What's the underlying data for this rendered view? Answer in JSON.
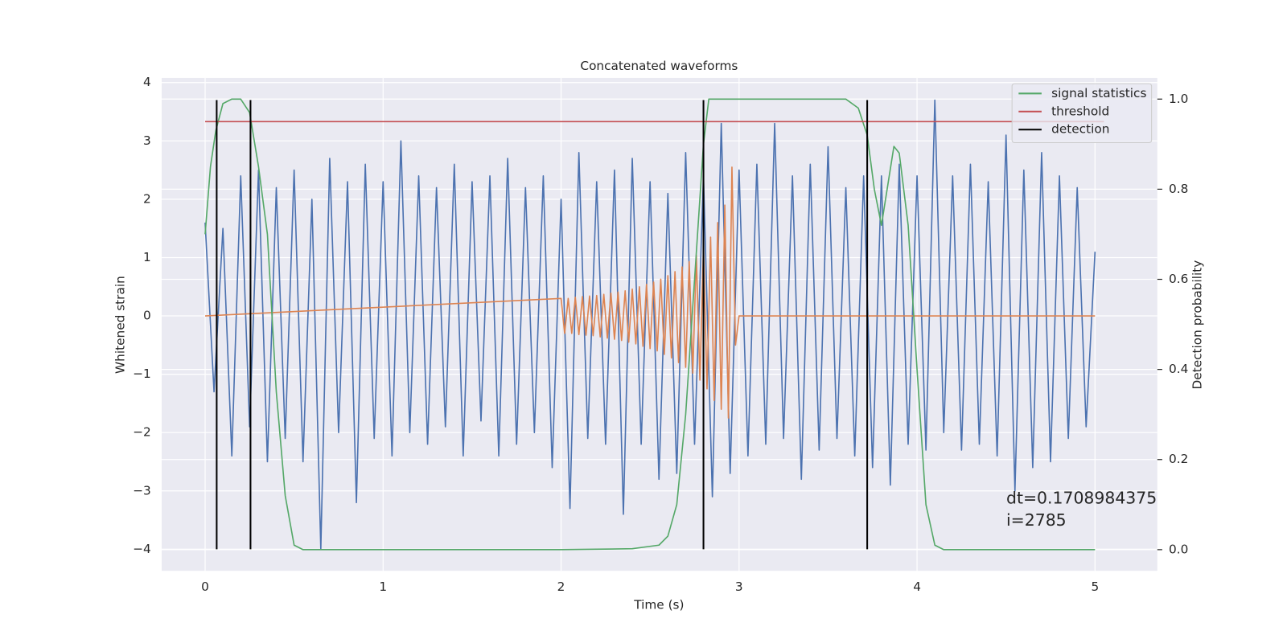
{
  "chart_data": {
    "type": "line",
    "title": "Concatenated waveforms",
    "xlabel": "Time (s)",
    "ylabel": "Whitened strain",
    "y2label": "Detection probability",
    "xlim": [
      -0.244,
      5.35
    ],
    "ylim": [
      -4.37,
      4.08
    ],
    "y2lim": [
      -0.047,
      1.047
    ],
    "xticks": [
      0,
      1,
      2,
      3,
      4,
      5
    ],
    "yticks": [
      {
        "value": -4,
        "label": "−4"
      },
      {
        "value": -3,
        "label": "−3"
      },
      {
        "value": -2,
        "label": "−2"
      },
      {
        "value": -1,
        "label": "−1"
      },
      0,
      1,
      2,
      3,
      4
    ],
    "y2ticks": [
      {
        "value": 0,
        "label": "0.0"
      },
      0.2,
      0.4,
      0.6,
      0.8,
      {
        "value": 1,
        "label": "1.0"
      }
    ],
    "grid": true,
    "legend": "upper right",
    "series": [
      {
        "color": "#4c72b0",
        "x": [
          0,
          0.05,
          0.1,
          0.15,
          0.2,
          0.25,
          0.3,
          0.35,
          0.4,
          0.45,
          0.5,
          0.55,
          0.6,
          0.65,
          0.7,
          0.75,
          0.8,
          0.85,
          0.9,
          0.95,
          1.0,
          1.05,
          1.1,
          1.15,
          1.2,
          1.25,
          1.3,
          1.35,
          1.4,
          1.45,
          1.5,
          1.55,
          1.6,
          1.65,
          1.7,
          1.75,
          1.8,
          1.85,
          1.9,
          1.95,
          2.0,
          2.05,
          2.1,
          2.15,
          2.2,
          2.25,
          2.3,
          2.35,
          2.4,
          2.45,
          2.5,
          2.55,
          2.6,
          2.65,
          2.7,
          2.75,
          2.8,
          2.85,
          2.9,
          2.95,
          3.0,
          3.05,
          3.1,
          3.15,
          3.2,
          3.25,
          3.3,
          3.35,
          3.4,
          3.45,
          3.5,
          3.55,
          3.6,
          3.65,
          3.7,
          3.75,
          3.8,
          3.85,
          3.9,
          3.95,
          4.0,
          4.05,
          4.1,
          4.15,
          4.2,
          4.25,
          4.3,
          4.35,
          4.4,
          4.45,
          4.5,
          4.55,
          4.6,
          4.65,
          4.7,
          4.75,
          4.8,
          4.85,
          4.9,
          4.95,
          5.0
        ],
        "values": [
          1.6,
          -1.3,
          1.5,
          -2.4,
          2.4,
          -1.9,
          2.5,
          -2.5,
          2.2,
          -2.1,
          2.5,
          -2.5,
          2.0,
          -4.0,
          2.7,
          -2.0,
          2.3,
          -3.2,
          2.6,
          -2.1,
          2.3,
          -2.4,
          3.0,
          -2.0,
          2.4,
          -2.2,
          2.2,
          -1.9,
          2.6,
          -2.4,
          2.3,
          -1.8,
          2.4,
          -2.4,
          2.7,
          -2.2,
          2.2,
          -2.0,
          2.4,
          -2.6,
          2.0,
          -3.3,
          2.8,
          -2.1,
          2.3,
          -2.2,
          2.5,
          -3.4,
          2.7,
          -2.2,
          2.3,
          -2.8,
          2.1,
          -2.7,
          2.8,
          -2.2,
          2.4,
          -3.1,
          3.3,
          -2.7,
          2.5,
          -2.4,
          2.6,
          -2.2,
          3.3,
          -2.1,
          2.4,
          -2.8,
          2.6,
          -2.3,
          2.9,
          -2.1,
          2.2,
          -2.4,
          2.4,
          -2.6,
          2.4,
          -2.9,
          2.6,
          -2.2,
          2.4,
          -2.3,
          3.7,
          -2.0,
          2.4,
          -2.3,
          2.6,
          -2.2,
          2.3,
          -2.4,
          3.1,
          -3.0,
          2.5,
          -2.6,
          2.8,
          -2.5,
          2.4,
          -2.1,
          2.2,
          -1.9,
          1.1
        ]
      },
      {
        "color": "#dd8452",
        "x": [
          0,
          2.0,
          2.02,
          2.04,
          2.06,
          2.08,
          2.1,
          2.12,
          2.14,
          2.16,
          2.18,
          2.2,
          2.22,
          2.24,
          2.26,
          2.28,
          2.3,
          2.32,
          2.34,
          2.36,
          2.38,
          2.4,
          2.42,
          2.44,
          2.46,
          2.48,
          2.5,
          2.52,
          2.54,
          2.56,
          2.58,
          2.6,
          2.62,
          2.64,
          2.66,
          2.68,
          2.7,
          2.72,
          2.74,
          2.76,
          2.78,
          2.8,
          2.82,
          2.84,
          2.86,
          2.88,
          2.9,
          2.92,
          2.94,
          2.96,
          2.98,
          3.0,
          5.0
        ],
        "values": [
          0,
          0.3,
          -0.3,
          0.3,
          -0.3,
          0.32,
          -0.32,
          0.33,
          -0.33,
          0.34,
          -0.34,
          0.35,
          -0.36,
          0.37,
          -0.38,
          0.39,
          -0.4,
          0.41,
          -0.42,
          0.43,
          -0.45,
          0.46,
          -0.48,
          0.5,
          -0.52,
          0.54,
          -0.56,
          0.58,
          -0.6,
          0.63,
          -0.66,
          0.69,
          -0.72,
          0.76,
          -0.8,
          0.84,
          -0.88,
          0.93,
          -0.98,
          1.04,
          -1.1,
          1.17,
          -1.25,
          1.35,
          -1.45,
          1.6,
          -1.6,
          1.9,
          -1.75,
          2.55,
          -0.5,
          0,
          0
        ]
      },
      {
        "name": "signal statistics",
        "color": "#55a868",
        "axis": "y2",
        "x": [
          0,
          0.03,
          0.06,
          0.1,
          0.15,
          0.2,
          0.25,
          0.3,
          0.35,
          0.4,
          0.45,
          0.5,
          0.55,
          1.0,
          2.0,
          2.4,
          2.55,
          2.6,
          2.65,
          2.7,
          2.75,
          2.8,
          2.83,
          3.0,
          3.6,
          3.67,
          3.72,
          3.76,
          3.8,
          3.84,
          3.87,
          3.9,
          3.95,
          4.0,
          4.05,
          4.1,
          4.15,
          5.0
        ],
        "values": [
          0.7,
          0.85,
          0.93,
          0.99,
          1.0,
          1.0,
          0.97,
          0.85,
          0.7,
          0.35,
          0.12,
          0.01,
          0,
          0,
          0,
          0.002,
          0.01,
          0.03,
          0.1,
          0.3,
          0.6,
          0.9,
          1.0,
          1.0,
          1.0,
          0.98,
          0.92,
          0.8,
          0.72,
          0.82,
          0.895,
          0.88,
          0.72,
          0.4,
          0.1,
          0.01,
          0,
          0
        ]
      },
      {
        "name": "threshold",
        "color": "#c44e52",
        "axis": "y2",
        "x": [
          0,
          5.05
        ],
        "values": [
          0.95,
          0.95
        ]
      },
      {
        "name": "detection",
        "color": "#000000",
        "kind": "vlines",
        "x": [
          0.065,
          0.255,
          2.8,
          3.72
        ],
        "ymin": -4,
        "ymax": 3.7
      }
    ],
    "annotation": [
      "dt=0.1708984375",
      " i=2785"
    ]
  }
}
